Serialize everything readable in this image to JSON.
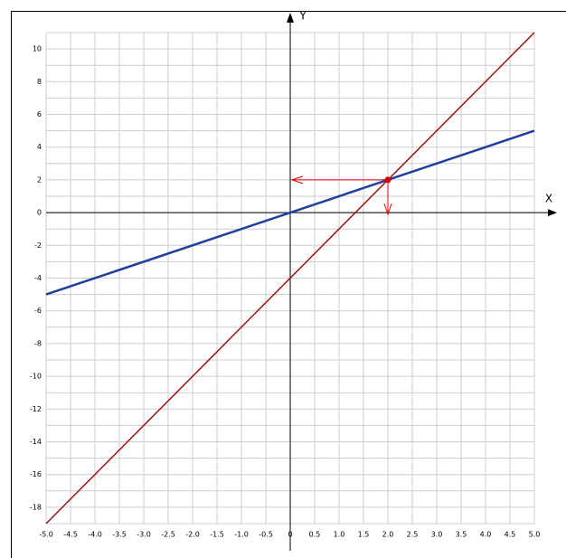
{
  "chart_data": {
    "type": "line",
    "x_label": "X",
    "y_label": "Y",
    "x": [
      -5,
      5
    ],
    "series": [
      {
        "color": "#1f3f9f",
        "values": [
          -5,
          5
        ]
      },
      {
        "color": "#a01010",
        "values": [
          -19,
          11
        ]
      }
    ],
    "points": [
      {
        "x": 2,
        "y": 2,
        "color": "#e00000"
      }
    ],
    "xlim": [
      -5,
      5
    ],
    "ylim": [
      -19,
      11
    ],
    "xticks": [
      {
        "value": -5,
        "label": "-5.0"
      },
      -4.5,
      {
        "value": -4,
        "label": "-4.0"
      },
      -3.5,
      {
        "value": -3,
        "label": "-3.0"
      },
      -2.5,
      {
        "value": -2,
        "label": "-2.0"
      },
      -1.5,
      {
        "value": -1,
        "label": "-1.0"
      },
      -0.5,
      0,
      0.5,
      {
        "value": 1,
        "label": "1.0"
      },
      1.5,
      {
        "value": 2,
        "label": "2.0"
      },
      2.5,
      {
        "value": 3,
        "label": "3.0"
      },
      3.5,
      {
        "value": 4,
        "label": "4.0"
      },
      4.5,
      {
        "value": 5,
        "label": "5.0"
      }
    ],
    "yticks": [
      10,
      8,
      6,
      4,
      2,
      0,
      -2,
      -4,
      -6,
      -8,
      -10,
      -12,
      -14,
      -16,
      -18
    ],
    "ygrid_minor": [
      11,
      9,
      7,
      5,
      3,
      1,
      -1,
      -3,
      -5,
      -7,
      -9,
      -11,
      -13,
      -15,
      -17,
      -19
    ],
    "grid": true
  }
}
